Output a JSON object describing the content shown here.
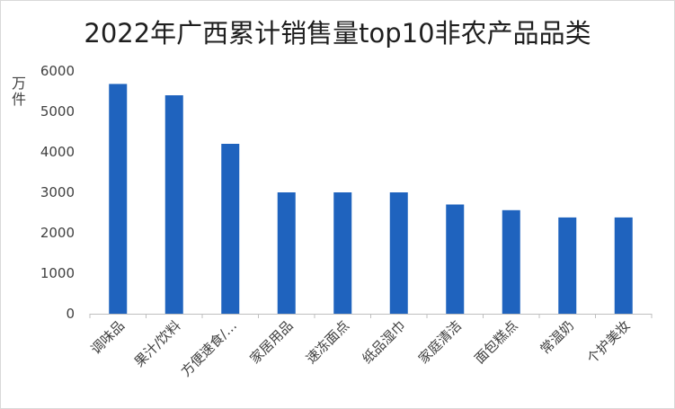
{
  "chart_data": {
    "type": "bar",
    "title": "2022年广西累计销售量top10非农产品品类",
    "xlabel": "",
    "ylabel": "万件",
    "ylim": [
      0,
      6000
    ],
    "yticks": [
      0,
      1000,
      2000,
      3000,
      4000,
      5000,
      6000
    ],
    "grid": false,
    "legend": "none",
    "bar_color": "#1F63BE",
    "categories": [
      "调味品",
      "果汁/饮料",
      "方便速食/…",
      "家居用品",
      "速冻面点",
      "纸品湿巾",
      "家庭清洁",
      "面包糕点",
      "常温奶",
      "个护美妆"
    ],
    "values": [
      5680,
      5400,
      4200,
      3000,
      3000,
      3000,
      2700,
      2560,
      2380,
      2380
    ]
  }
}
